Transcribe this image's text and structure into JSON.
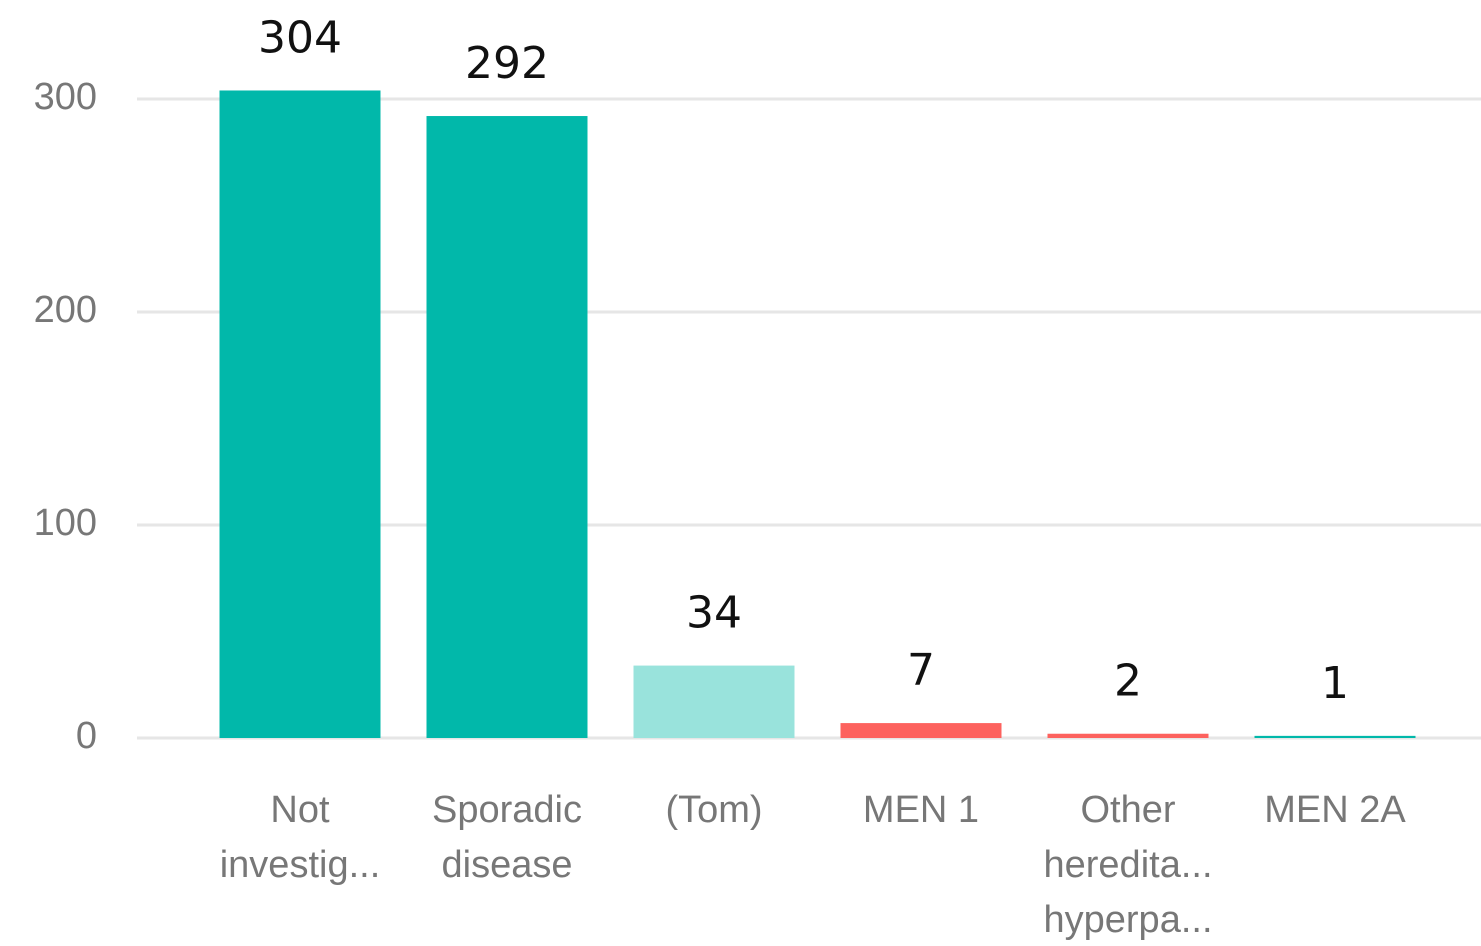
{
  "chart_data": {
    "type": "bar",
    "categories": [
      [
        "Not",
        "investig..."
      ],
      [
        "Sporadic",
        "disease"
      ],
      [
        "(Tom)"
      ],
      [
        "MEN 1"
      ],
      [
        "Other",
        "heredita...",
        "hyperpa..."
      ],
      [
        "MEN 2A"
      ]
    ],
    "values": [
      304,
      292,
      34,
      7,
      2,
      1
    ],
    "colors": [
      "#01b8aa",
      "#01b8aa",
      "#99e3dc",
      "#fd625e",
      "#fd625e",
      "#01b8aa"
    ],
    "ylim": [
      0,
      300
    ],
    "yticks": [
      0,
      100,
      200,
      300
    ],
    "grid": true
  }
}
